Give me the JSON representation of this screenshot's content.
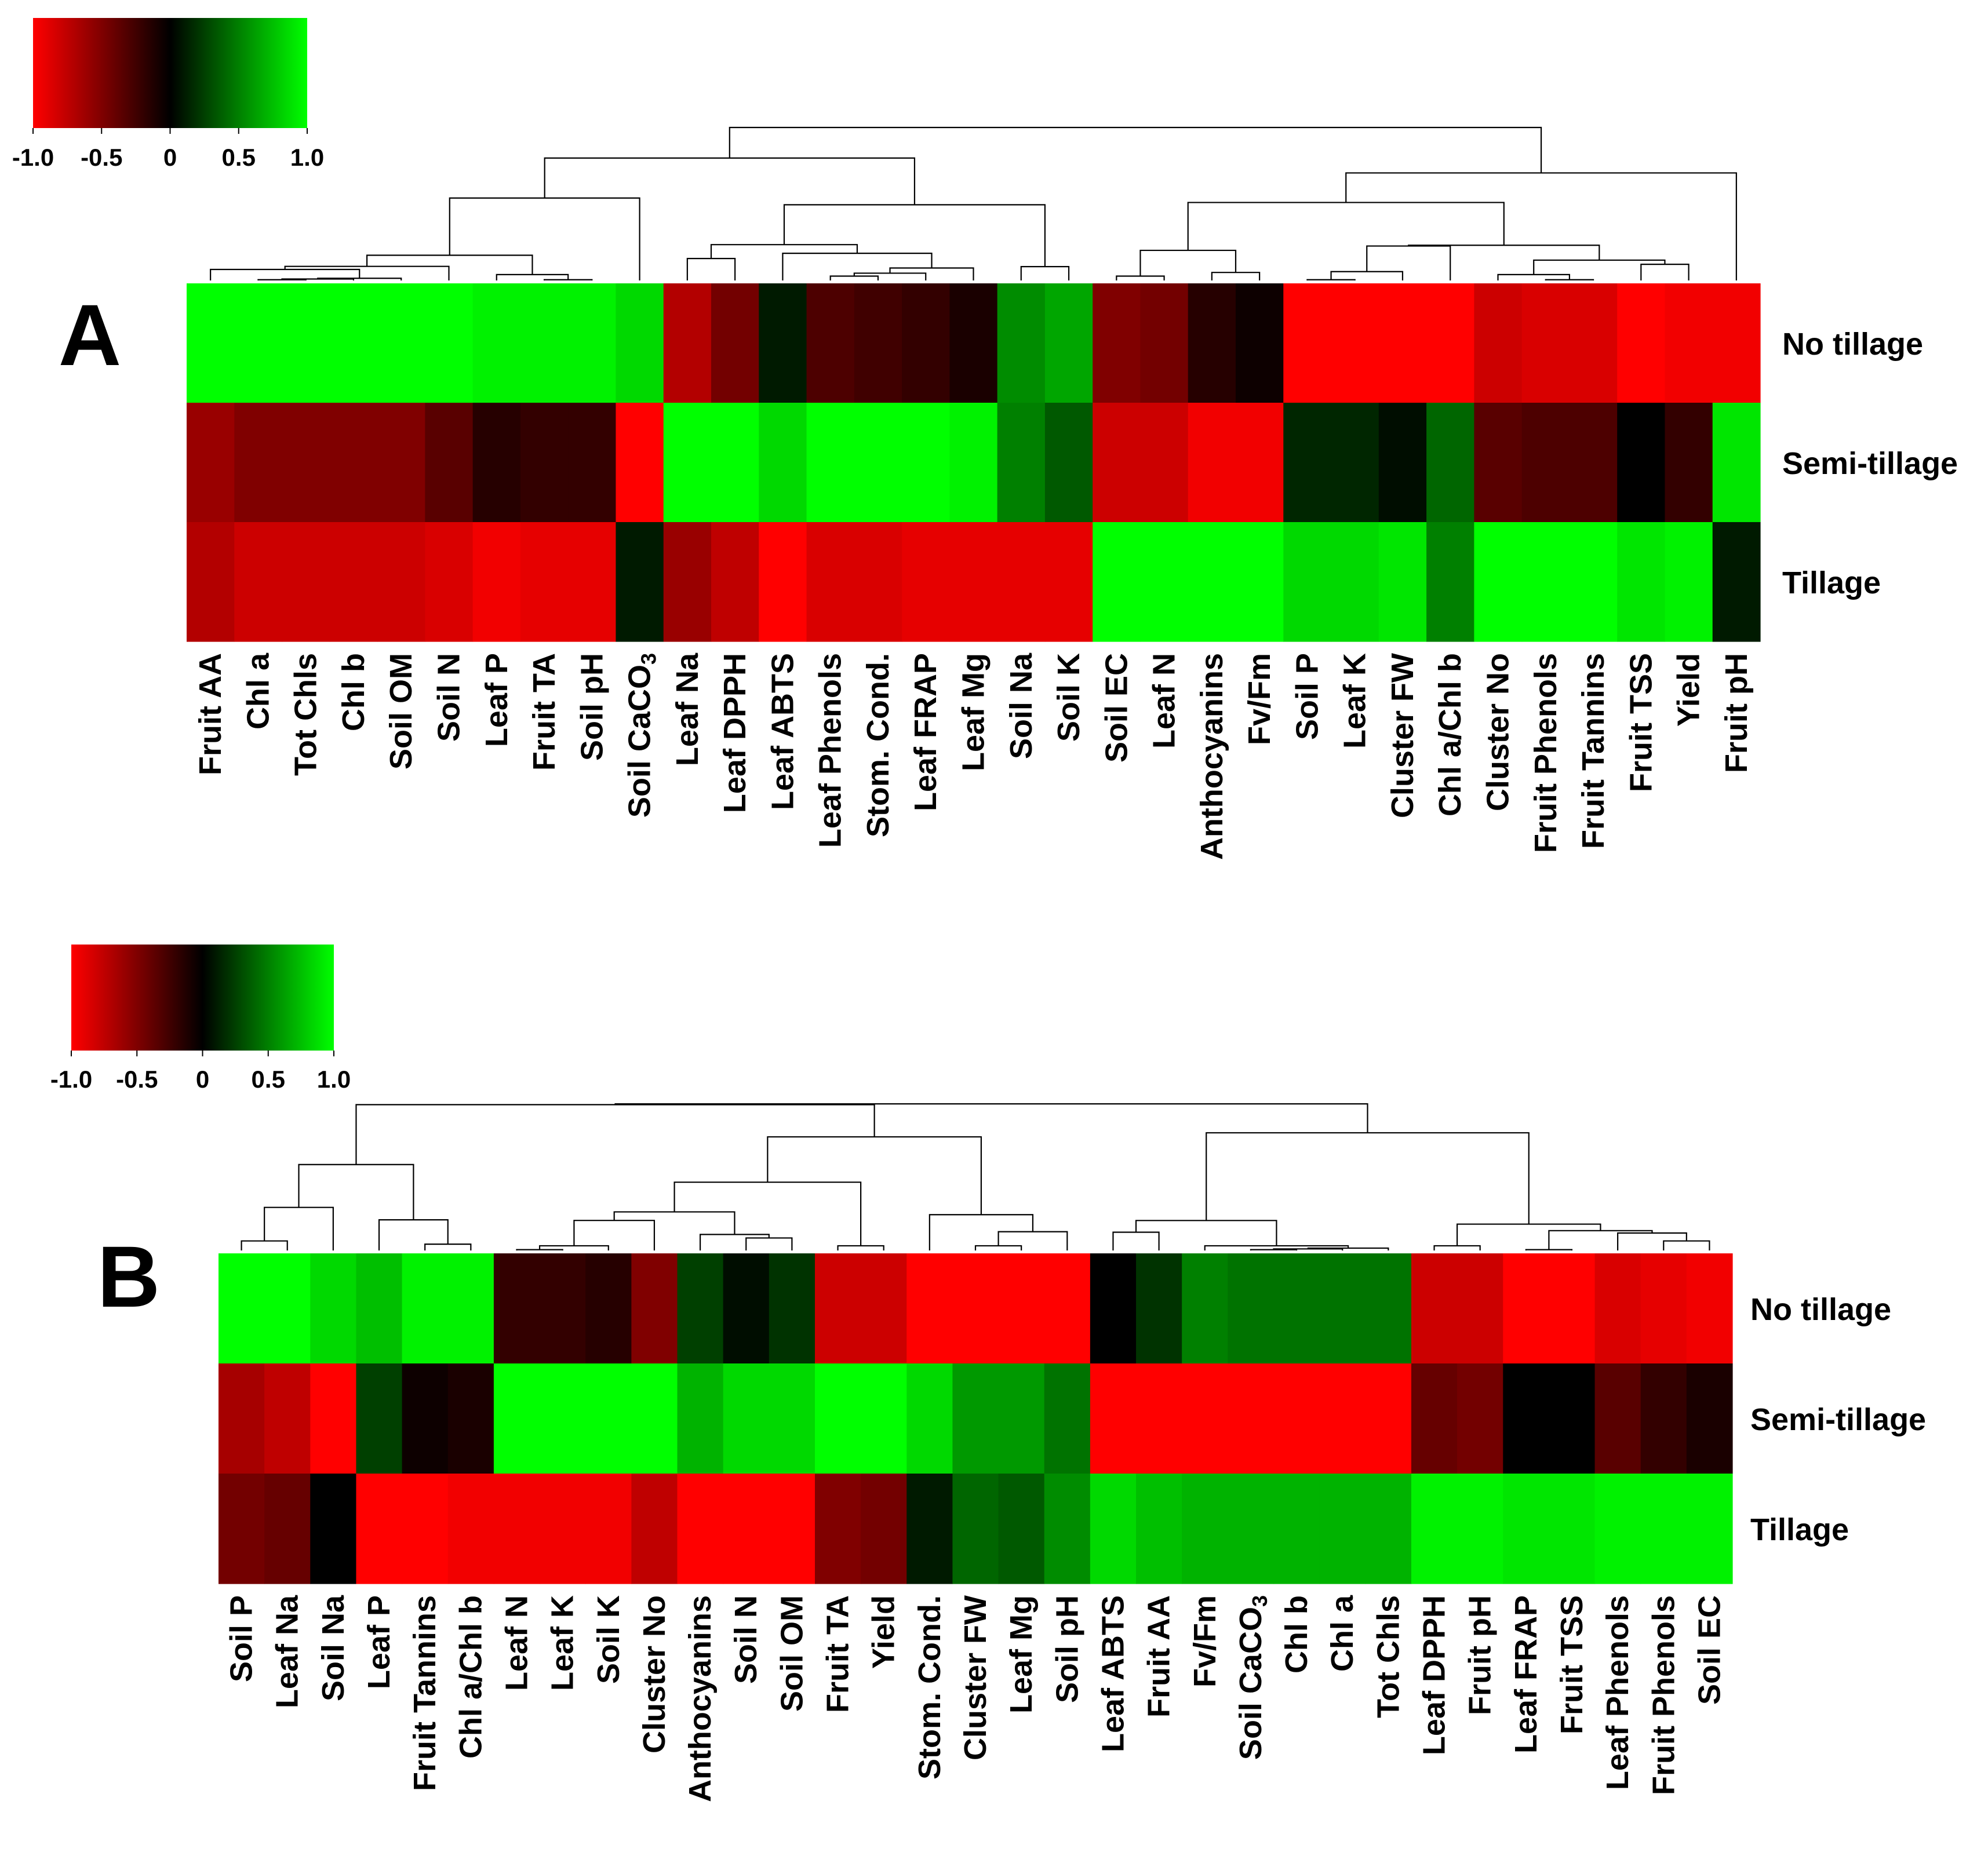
{
  "chart_data": [
    {
      "panel": "A",
      "type": "heatmap",
      "title": "",
      "colorbar": {
        "ticks": [
          "-1.0",
          "-0.5",
          "0",
          "0.5",
          "1.0"
        ],
        "range": [
          -1.0,
          1.0
        ],
        "low_color": "#ff0000",
        "mid_color": "#000000",
        "high_color": "#00ff00"
      },
      "rows": [
        "No tillage",
        "Semi-tillage",
        "Tillage"
      ],
      "columns": [
        "Fruit AA",
        "Chl a",
        "Tot Chls",
        "Chl b",
        "Soil OM",
        "Soil N",
        "Leaf P",
        "Fruit TA",
        "Soil pH",
        "Soil CaCO₃",
        "Leaf Na",
        "Leaf DPPH",
        "Leaf ABTS",
        "Leaf Phenols",
        "Stom. Cond.",
        "Leaf FRAP",
        "Leaf Mg",
        "Soil Na",
        "Soil K",
        "Soil EC",
        "Leaf N",
        "Anthocyanins",
        "Fv/Fm",
        "Soil P",
        "Leaf K",
        "Cluster FW",
        "Chl a/Chl b",
        "Cluster No",
        "Fruit Phenols",
        "Fruit Tannins",
        "Fruit TSS",
        "Yield",
        "Fruit pH"
      ],
      "values": [
        [
          1.0,
          1.0,
          1.0,
          1.0,
          1.0,
          1.0,
          0.95,
          0.95,
          0.95,
          0.85,
          -0.7,
          -0.45,
          0.1,
          -0.3,
          -0.25,
          -0.2,
          -0.1,
          0.55,
          0.65,
          -0.5,
          -0.45,
          -0.15,
          -0.05,
          -1.0,
          -1.0,
          -1.0,
          -1.0,
          -0.8,
          -0.85,
          -0.85,
          -1.0,
          -0.95,
          -0.95
        ],
        [
          -0.6,
          -0.5,
          -0.5,
          -0.5,
          -0.5,
          -0.35,
          -0.15,
          -0.2,
          -0.2,
          -1.0,
          1.0,
          1.0,
          0.85,
          1.0,
          1.0,
          1.0,
          0.95,
          0.5,
          0.35,
          -0.8,
          -0.8,
          -0.95,
          -0.95,
          0.15,
          0.15,
          0.05,
          0.4,
          -0.35,
          -0.3,
          -0.3,
          0.0,
          -0.2,
          0.9
        ],
        [
          -0.7,
          -0.8,
          -0.8,
          -0.8,
          -0.8,
          -0.85,
          -0.95,
          -0.9,
          -0.9,
          0.1,
          -0.6,
          -0.75,
          -1.0,
          -0.85,
          -0.85,
          -0.9,
          -0.9,
          -0.9,
          -0.9,
          1.0,
          1.0,
          1.0,
          1.0,
          0.85,
          0.85,
          0.9,
          0.5,
          1.0,
          1.0,
          1.0,
          0.9,
          0.95,
          0.1
        ]
      ]
    },
    {
      "panel": "B",
      "type": "heatmap",
      "title": "",
      "colorbar": {
        "ticks": [
          "-1.0",
          "-0.5",
          "0",
          "0.5",
          "1.0"
        ],
        "range": [
          -1.0,
          1.0
        ],
        "low_color": "#ff0000",
        "mid_color": "#000000",
        "high_color": "#00ff00"
      },
      "rows": [
        "No tillage",
        "Semi-tillage",
        "Tillage"
      ],
      "columns": [
        "Soil P",
        "Leaf Na",
        "Soil Na",
        "Leaf P",
        "Fruit Tannins",
        "Chl a/Chl b",
        "Leaf N",
        "Leaf K",
        "Soil K",
        "Cluster No",
        "Anthocyanins",
        "Soil N",
        "Soil OM",
        "Fruit TA",
        "Yield",
        "Stom. Cond.",
        "Cluster FW",
        "Leaf Mg",
        "Soil pH",
        "Leaf ABTS",
        "Fruit AA",
        "Fv/Fm",
        "Soil CaCO₃",
        "Chl b",
        "Chl a",
        "Tot Chls",
        "Leaf DPPH",
        "Fruit pH",
        "Leaf FRAP",
        "Fruit TSS",
        "Leaf Phenols",
        "Fruit Phenols",
        "Soil EC"
      ],
      "values": [
        [
          1.0,
          1.0,
          0.85,
          0.75,
          0.95,
          0.95,
          -0.2,
          -0.2,
          -0.15,
          -0.5,
          0.25,
          0.05,
          0.2,
          -0.8,
          -0.8,
          -1.0,
          -1.0,
          -1.0,
          -1.0,
          0.0,
          0.2,
          0.5,
          0.45,
          0.45,
          0.45,
          0.45,
          -0.8,
          -0.8,
          -1.0,
          -1.0,
          -0.85,
          -0.9,
          -0.95
        ],
        [
          -0.65,
          -0.75,
          -1.0,
          0.25,
          -0.05,
          -0.1,
          1.0,
          1.0,
          1.0,
          1.0,
          0.7,
          0.85,
          0.85,
          1.0,
          1.0,
          0.85,
          0.6,
          0.6,
          0.45,
          -1.0,
          -1.0,
          -1.0,
          -1.0,
          -1.0,
          -1.0,
          -1.0,
          -0.4,
          -0.45,
          0.0,
          0.0,
          -0.35,
          -0.2,
          -0.1
        ],
        [
          -0.45,
          -0.4,
          0.0,
          -1.0,
          -1.0,
          -0.95,
          -0.95,
          -0.95,
          -0.95,
          -0.75,
          -1.0,
          -1.0,
          -1.0,
          -0.5,
          -0.45,
          0.1,
          0.4,
          0.35,
          0.55,
          0.85,
          0.75,
          0.7,
          0.7,
          0.7,
          0.7,
          0.7,
          0.95,
          0.95,
          0.9,
          0.9,
          0.95,
          0.95,
          0.95
        ]
      ]
    }
  ]
}
